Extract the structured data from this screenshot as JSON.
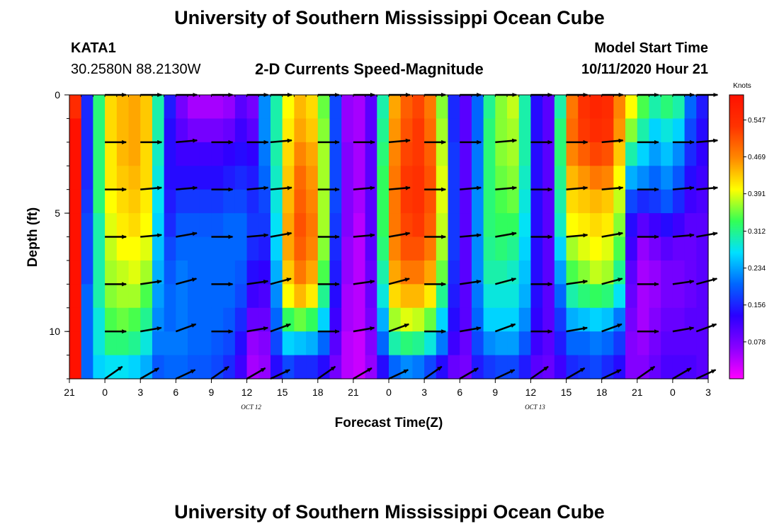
{
  "header": {
    "title_top": "University of Southern Mississippi Ocean Cube",
    "station_id": "KATA1",
    "coords": "30.2580N 88.2130W",
    "plot_title": "2-D Currents Speed-Magnitude",
    "start_label": "Model Start Time",
    "start_value": "10/11/2020 Hour 21"
  },
  "footer": {
    "title_bottom": "University of Southern Mississippi Ocean Cube"
  },
  "colors": {
    "scale": [
      "#ff00ff",
      "#8800ff",
      "#2a00ff",
      "#0066ff",
      "#00e0ff",
      "#33ff55",
      "#ffff00",
      "#ff8800",
      "#ff3300",
      "#ff1100"
    ],
    "arrow": "#000000"
  },
  "chart_data": {
    "type": "heatmap",
    "title": "2-D Currents Speed-Magnitude",
    "xlabel": "Forecast Time(Z)",
    "ylabel": "Depth (ft)",
    "unit": "Knots",
    "x_start_hour": -3,
    "x_step_hours": 1,
    "x_range_hours": [
      -3,
      51
    ],
    "x_ticks": [
      {
        "hour": -3,
        "label": "21"
      },
      {
        "hour": 0,
        "label": "0"
      },
      {
        "hour": 3,
        "label": "3"
      },
      {
        "hour": 6,
        "label": "6"
      },
      {
        "hour": 9,
        "label": "9"
      },
      {
        "hour": 12,
        "label": "12"
      },
      {
        "hour": 15,
        "label": "15"
      },
      {
        "hour": 18,
        "label": "18"
      },
      {
        "hour": 21,
        "label": "21"
      },
      {
        "hour": 24,
        "label": "0"
      },
      {
        "hour": 27,
        "label": "3"
      },
      {
        "hour": 30,
        "label": "6"
      },
      {
        "hour": 33,
        "label": "9"
      },
      {
        "hour": 36,
        "label": "12"
      },
      {
        "hour": 39,
        "label": "15"
      },
      {
        "hour": 42,
        "label": "18"
      },
      {
        "hour": 45,
        "label": "21"
      },
      {
        "hour": 48,
        "label": "0"
      },
      {
        "hour": 51,
        "label": "3"
      }
    ],
    "date_labels": [
      {
        "hour": 12,
        "label": "OCT 12"
      },
      {
        "hour": 36,
        "label": "OCT 13"
      }
    ],
    "y_range_ft": [
      0,
      12
    ],
    "y_ticks": [
      {
        "value": 0,
        "label": "0"
      },
      {
        "value": 5,
        "label": "5"
      },
      {
        "value": 10,
        "label": "10"
      }
    ],
    "depth_bins_ft": [
      0,
      1,
      2,
      3,
      4,
      5,
      6,
      7,
      8,
      9,
      10,
      11
    ],
    "column_profiles": [
      [
        0.55,
        0.6,
        0.62,
        0.62,
        0.62,
        0.6,
        0.6,
        0.6,
        0.62,
        0.62,
        0.65,
        0.7
      ],
      [
        0.16,
        0.16,
        0.16,
        0.16,
        0.17,
        0.18,
        0.18,
        0.18,
        0.2,
        0.2,
        0.2,
        0.2
      ],
      [
        0.32,
        0.32,
        0.32,
        0.32,
        0.32,
        0.3,
        0.3,
        0.3,
        0.3,
        0.28,
        0.28,
        0.26
      ],
      [
        0.42,
        0.42,
        0.41,
        0.41,
        0.4,
        0.39,
        0.38,
        0.37,
        0.36,
        0.34,
        0.32,
        0.27
      ],
      [
        0.44,
        0.44,
        0.44,
        0.43,
        0.42,
        0.41,
        0.4,
        0.38,
        0.37,
        0.35,
        0.32,
        0.27
      ],
      [
        0.45,
        0.45,
        0.45,
        0.44,
        0.43,
        0.42,
        0.4,
        0.39,
        0.37,
        0.34,
        0.31,
        0.26
      ],
      [
        0.43,
        0.43,
        0.42,
        0.42,
        0.41,
        0.4,
        0.39,
        0.37,
        0.34,
        0.31,
        0.28,
        0.24
      ],
      [
        0.3,
        0.3,
        0.29,
        0.28,
        0.27,
        0.26,
        0.25,
        0.24,
        0.23,
        0.22,
        0.21,
        0.19
      ],
      [
        0.15,
        0.14,
        0.14,
        0.14,
        0.15,
        0.16,
        0.18,
        0.19,
        0.2,
        0.2,
        0.21,
        0.2
      ],
      [
        0.08,
        0.1,
        0.12,
        0.14,
        0.17,
        0.19,
        0.2,
        0.21,
        0.21,
        0.21,
        0.21,
        0.2
      ],
      [
        0.05,
        0.08,
        0.12,
        0.14,
        0.17,
        0.19,
        0.2,
        0.2,
        0.2,
        0.2,
        0.2,
        0.19
      ],
      [
        0.05,
        0.08,
        0.12,
        0.14,
        0.17,
        0.19,
        0.2,
        0.2,
        0.2,
        0.2,
        0.2,
        0.19
      ],
      [
        0.05,
        0.08,
        0.12,
        0.14,
        0.17,
        0.19,
        0.2,
        0.2,
        0.2,
        0.2,
        0.19,
        0.18
      ],
      [
        0.06,
        0.09,
        0.13,
        0.15,
        0.18,
        0.2,
        0.2,
        0.2,
        0.2,
        0.19,
        0.18,
        0.16
      ],
      [
        0.1,
        0.12,
        0.14,
        0.16,
        0.18,
        0.2,
        0.2,
        0.19,
        0.18,
        0.16,
        0.14,
        0.12
      ],
      [
        0.08,
        0.1,
        0.13,
        0.15,
        0.16,
        0.17,
        0.16,
        0.14,
        0.12,
        0.09,
        0.06,
        0.05
      ],
      [
        0.22,
        0.22,
        0.21,
        0.2,
        0.18,
        0.17,
        0.15,
        0.13,
        0.11,
        0.09,
        0.07,
        0.06
      ],
      [
        0.3,
        0.3,
        0.3,
        0.29,
        0.28,
        0.27,
        0.26,
        0.24,
        0.22,
        0.2,
        0.18,
        0.14
      ],
      [
        0.4,
        0.41,
        0.42,
        0.43,
        0.44,
        0.45,
        0.45,
        0.43,
        0.4,
        0.33,
        0.26,
        0.18
      ],
      [
        0.44,
        0.45,
        0.47,
        0.49,
        0.5,
        0.51,
        0.5,
        0.48,
        0.44,
        0.35,
        0.25,
        0.16
      ],
      [
        0.42,
        0.43,
        0.45,
        0.46,
        0.47,
        0.48,
        0.47,
        0.45,
        0.41,
        0.33,
        0.24,
        0.16
      ],
      [
        0.35,
        0.36,
        0.37,
        0.37,
        0.37,
        0.37,
        0.36,
        0.34,
        0.31,
        0.26,
        0.2,
        0.14
      ],
      [
        0.18,
        0.18,
        0.18,
        0.18,
        0.18,
        0.17,
        0.16,
        0.15,
        0.14,
        0.12,
        0.1,
        0.08
      ],
      [
        0.06,
        0.06,
        0.07,
        0.07,
        0.07,
        0.07,
        0.06,
        0.06,
        0.05,
        0.05,
        0.04,
        0.04
      ],
      [
        0.05,
        0.05,
        0.05,
        0.05,
        0.05,
        0.04,
        0.04,
        0.04,
        0.04,
        0.04,
        0.03,
        0.03
      ],
      [
        0.1,
        0.1,
        0.1,
        0.1,
        0.1,
        0.1,
        0.1,
        0.09,
        0.09,
        0.08,
        0.07,
        0.06
      ],
      [
        0.3,
        0.31,
        0.32,
        0.33,
        0.33,
        0.33,
        0.32,
        0.3,
        0.28,
        0.24,
        0.2,
        0.14
      ],
      [
        0.45,
        0.46,
        0.47,
        0.48,
        0.48,
        0.48,
        0.47,
        0.45,
        0.42,
        0.37,
        0.3,
        0.2
      ],
      [
        0.5,
        0.51,
        0.52,
        0.53,
        0.53,
        0.52,
        0.51,
        0.48,
        0.44,
        0.39,
        0.32,
        0.22
      ],
      [
        0.52,
        0.53,
        0.53,
        0.54,
        0.54,
        0.53,
        0.51,
        0.48,
        0.44,
        0.38,
        0.31,
        0.21
      ],
      [
        0.48,
        0.49,
        0.5,
        0.51,
        0.51,
        0.5,
        0.48,
        0.45,
        0.41,
        0.35,
        0.28,
        0.18
      ],
      [
        0.36,
        0.37,
        0.38,
        0.39,
        0.39,
        0.38,
        0.37,
        0.35,
        0.31,
        0.26,
        0.21,
        0.14
      ],
      [
        0.16,
        0.16,
        0.17,
        0.17,
        0.17,
        0.17,
        0.17,
        0.16,
        0.15,
        0.14,
        0.12,
        0.09
      ],
      [
        0.1,
        0.1,
        0.1,
        0.1,
        0.1,
        0.1,
        0.1,
        0.1,
        0.1,
        0.1,
        0.09,
        0.08
      ],
      [
        0.2,
        0.2,
        0.21,
        0.21,
        0.22,
        0.22,
        0.22,
        0.22,
        0.21,
        0.2,
        0.18,
        0.15
      ],
      [
        0.31,
        0.32,
        0.32,
        0.32,
        0.32,
        0.32,
        0.31,
        0.3,
        0.28,
        0.26,
        0.22,
        0.17
      ],
      [
        0.36,
        0.36,
        0.36,
        0.35,
        0.34,
        0.33,
        0.32,
        0.3,
        0.28,
        0.26,
        0.23,
        0.18
      ],
      [
        0.38,
        0.37,
        0.37,
        0.36,
        0.35,
        0.33,
        0.31,
        0.29,
        0.28,
        0.26,
        0.23,
        0.18
      ],
      [
        0.3,
        0.3,
        0.3,
        0.29,
        0.28,
        0.27,
        0.26,
        0.25,
        0.24,
        0.22,
        0.19,
        0.15
      ],
      [
        0.14,
        0.14,
        0.14,
        0.14,
        0.14,
        0.14,
        0.14,
        0.14,
        0.14,
        0.13,
        0.12,
        0.1
      ],
      [
        0.1,
        0.1,
        0.1,
        0.1,
        0.1,
        0.1,
        0.1,
        0.1,
        0.1,
        0.1,
        0.1,
        0.09
      ],
      [
        0.3,
        0.32,
        0.32,
        0.31,
        0.3,
        0.29,
        0.26,
        0.23,
        0.2,
        0.17,
        0.15,
        0.12
      ],
      [
        0.48,
        0.49,
        0.47,
        0.44,
        0.42,
        0.4,
        0.37,
        0.34,
        0.3,
        0.24,
        0.2,
        0.16
      ],
      [
        0.54,
        0.53,
        0.5,
        0.46,
        0.43,
        0.41,
        0.39,
        0.36,
        0.32,
        0.25,
        0.2,
        0.17
      ],
      [
        0.56,
        0.55,
        0.52,
        0.48,
        0.44,
        0.42,
        0.4,
        0.38,
        0.33,
        0.26,
        0.21,
        0.18
      ],
      [
        0.55,
        0.54,
        0.51,
        0.47,
        0.43,
        0.41,
        0.39,
        0.37,
        0.32,
        0.25,
        0.2,
        0.16
      ],
      [
        0.47,
        0.46,
        0.43,
        0.4,
        0.38,
        0.36,
        0.34,
        0.31,
        0.27,
        0.21,
        0.17,
        0.14
      ],
      [
        0.4,
        0.36,
        0.3,
        0.24,
        0.18,
        0.14,
        0.12,
        0.1,
        0.09,
        0.08,
        0.07,
        0.07
      ],
      [
        0.34,
        0.3,
        0.26,
        0.22,
        0.16,
        0.1,
        0.06,
        0.05,
        0.05,
        0.05,
        0.06,
        0.07
      ],
      [
        0.3,
        0.26,
        0.23,
        0.2,
        0.17,
        0.12,
        0.08,
        0.06,
        0.06,
        0.07,
        0.08,
        0.09
      ],
      [
        0.32,
        0.28,
        0.25,
        0.22,
        0.19,
        0.14,
        0.1,
        0.08,
        0.08,
        0.09,
        0.1,
        0.11
      ],
      [
        0.3,
        0.26,
        0.22,
        0.19,
        0.16,
        0.12,
        0.09,
        0.08,
        0.08,
        0.09,
        0.1,
        0.11
      ],
      [
        0.2,
        0.18,
        0.16,
        0.14,
        0.12,
        0.1,
        0.09,
        0.09,
        0.09,
        0.1,
        0.1,
        0.11
      ],
      [
        0.15,
        0.14,
        0.13,
        0.12,
        0.11,
        0.1,
        0.1,
        0.1,
        0.1,
        0.1,
        0.1,
        0.1
      ]
    ],
    "arrow_depths_ft": [
      0,
      2,
      4,
      6,
      8,
      10,
      12
    ],
    "arrow_times_hours": [
      0,
      3,
      6,
      9,
      12,
      14,
      18,
      21,
      24,
      27,
      30,
      33,
      36,
      39,
      42,
      45,
      48,
      50
    ],
    "arrow_angles_deg": [
      [
        0,
        0,
        0
      ],
      [
        0,
        0,
        5
      ],
      [
        0,
        5,
        5
      ],
      [
        0,
        5,
        10
      ],
      [
        0,
        8,
        15
      ],
      [
        0,
        10,
        20
      ],
      [
        35,
        30,
        25
      ]
    ],
    "colorbar": {
      "title": "Knots",
      "min": 0,
      "max": 0.6,
      "tick_values": [
        0.078,
        0.156,
        0.234,
        0.312,
        0.391,
        0.469,
        0.547
      ],
      "tick_labels": [
        "0.078",
        "0.156",
        "0.234",
        "0.312",
        "0.391",
        "0.469",
        "0.547"
      ]
    }
  }
}
